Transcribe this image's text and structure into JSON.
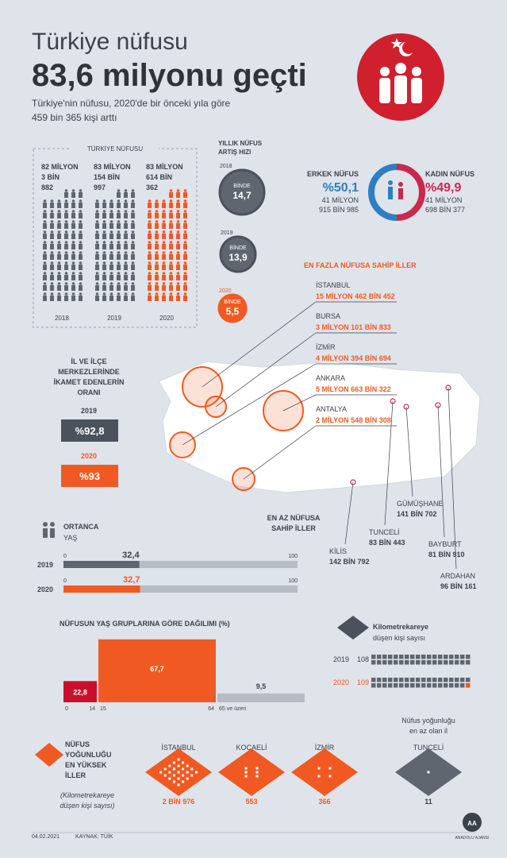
{
  "header": {
    "title_line1": "Türkiye nüfusu",
    "title_line2": "83,6 milyonu geçti",
    "subtitle_line1": "Türkiye'nin nüfusu, 2020'de bir önceki yıla göre",
    "subtitle_line2": "459 bin 365 kişi arttı"
  },
  "population": {
    "title": "TÜRKİYE NÜFUSU",
    "columns": [
      {
        "year": "2018",
        "lines": [
          "82 MİLYON",
          "3 BİN",
          "882"
        ]
      },
      {
        "year": "2019",
        "lines": [
          "83 MİLYON",
          "154 BİN",
          "997"
        ]
      },
      {
        "year": "2020",
        "lines": [
          "83 MİLYON",
          "614 BİN",
          "362"
        ]
      }
    ]
  },
  "growth": {
    "title_lines": [
      "YILLIK NÜFUS",
      "ARTIŞ HIZI"
    ],
    "items": [
      {
        "year": "2018",
        "unit": "BİNDE",
        "value": "14,7"
      },
      {
        "year": "2019",
        "unit": "BİNDE",
        "value": "13,9"
      },
      {
        "year": "2020",
        "unit": "BİNDE",
        "value": "5,5"
      }
    ]
  },
  "gender": {
    "male": {
      "label": "ERKEK NÜFUS",
      "share": {
        "value": 50.1,
        "label": "%50,1"
      },
      "lines": [
        "41 MİLYON",
        "915 BİN 985"
      ]
    },
    "female": {
      "label": "KADIN NÜFUS",
      "share": {
        "value": 49.9,
        "label": "%49,9"
      },
      "lines": [
        "41 MİLYON",
        "698 BİN 377"
      ]
    }
  },
  "provinces_top": {
    "title": "EN FAZLA NÜFUSA SAHİP İLLER",
    "items": [
      {
        "name": "İSTANBUL",
        "population": "15 MİLYON 462 BİN 452"
      },
      {
        "name": "BURSA",
        "population": "3 MİLYON 101 BİN 833"
      },
      {
        "name": "İZMİR",
        "population": "4 MİLYON 394 BİN 694"
      },
      {
        "name": "ANKARA",
        "population": "5 MİLYON 663 BİN 322"
      },
      {
        "name": "ANTALYA",
        "population": "2 MİLYON 548 BİN 308"
      }
    ]
  },
  "provinces_bottom": {
    "title_lines": [
      "EN AZ NÜFUSA",
      "SAHİP İLLER"
    ],
    "items": [
      {
        "name": "KİLİS",
        "population": "142 BİN 792"
      },
      {
        "name": "TUNCELİ",
        "population": "83 BİN 443"
      },
      {
        "name": "GÜMÜŞHANE",
        "population": "141 BİN 702"
      },
      {
        "name": "BAYBURT",
        "population": "81 BİN 910"
      },
      {
        "name": "ARDAHAN",
        "population": "96 BİN 161"
      }
    ]
  },
  "urban": {
    "title_lines": [
      "İL VE İLÇE",
      "MERKEZLERİNDE",
      "İKAMET EDENLERİN",
      "ORANI"
    ],
    "items": [
      {
        "year": "2019",
        "value": "%92,8"
      },
      {
        "year": "2020",
        "value": "%93"
      }
    ]
  },
  "median_age": {
    "title": "ORTANCA",
    "subtitle": "YAŞ",
    "min": 0,
    "max": 100,
    "items": [
      {
        "year": "2019",
        "value": {
          "value": 32.4,
          "label": "32,4"
        }
      },
      {
        "year": "2020",
        "value": {
          "value": 32.7,
          "label": "32,7"
        }
      }
    ]
  },
  "age_groups": {
    "title": "NÜFUSUN YAŞ GRUPLARINA GÖRE DAĞILIMI (%)",
    "groups": [
      {
        "value": 22.8,
        "label": "22,8",
        "from": "0",
        "to": "14"
      },
      {
        "value": 67.7,
        "label": "67,7",
        "from": "15",
        "to": "64"
      },
      {
        "value": 9.5,
        "label": "9,5",
        "from": "65 ve üzeri"
      }
    ]
  },
  "density": {
    "title": "Kilometrekareye",
    "subtitle": "düşen kişi sayısı",
    "items": [
      {
        "year": "2019",
        "value": "108"
      },
      {
        "year": "2020",
        "value": "109"
      }
    ]
  },
  "density_top": {
    "title_lines": [
      "NÜFUS",
      "YOĞUNLUĞU",
      "EN YÜKSEK",
      "İLLER"
    ],
    "note_lines": [
      "(Kilometrekareye",
      "düşen kişi sayısı)"
    ],
    "items": [
      {
        "name": "İSTANBUL",
        "value": "2 BİN 976"
      },
      {
        "name": "KOCAELİ",
        "value": "553"
      },
      {
        "name": "İZMİR",
        "value": "366"
      }
    ],
    "lowest": {
      "title_lines": [
        "Nüfus yoğunluğu",
        "en az olan il"
      ],
      "name": "TUNCELİ",
      "value": "11"
    }
  },
  "footer": {
    "date": "04.02.2021",
    "source": "KAYNAK: TÜİK",
    "brand": "ANADOLU AJANSI"
  }
}
